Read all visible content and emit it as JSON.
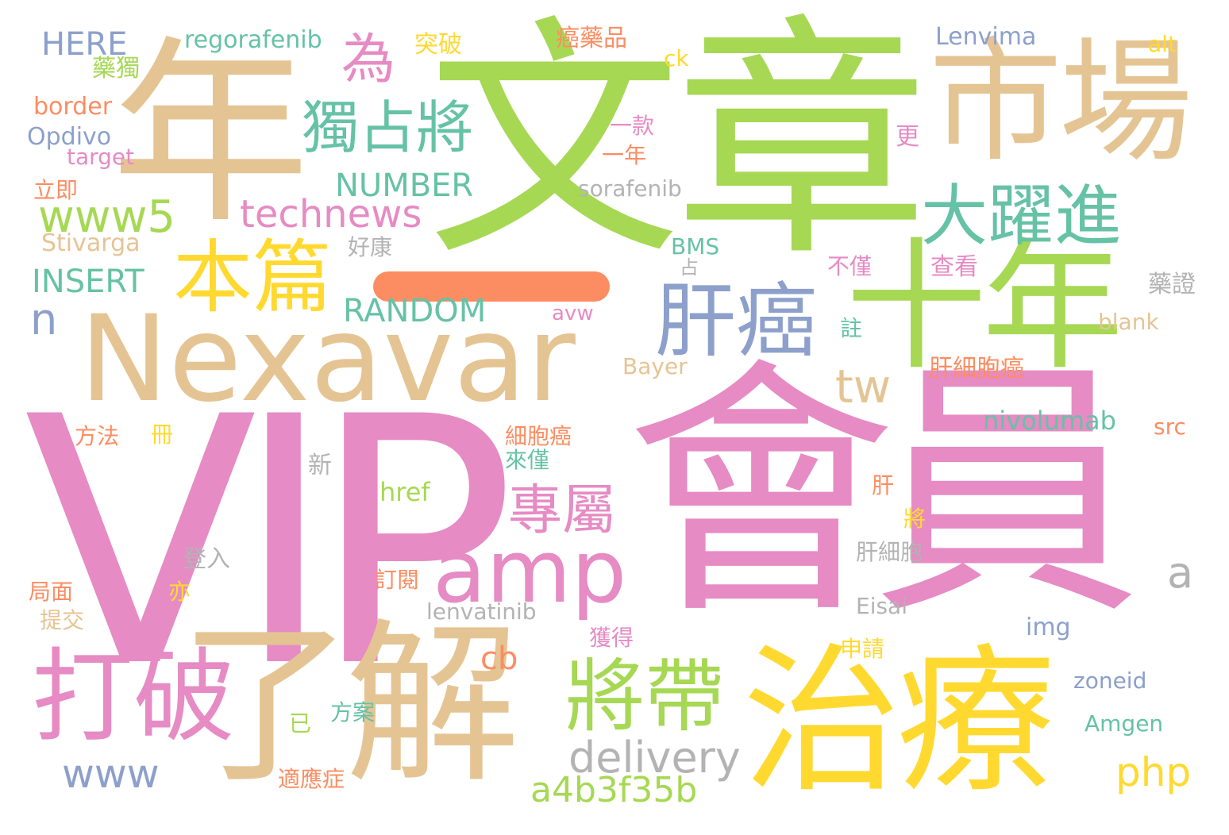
{
  "colors": {
    "pink": "#E68BC4",
    "green": "#A6D854",
    "tan": "#E5C494",
    "yellow": "#FFD92F",
    "blue": "#8DA0CB",
    "teal": "#66C2A5",
    "orange": "#FC8D62",
    "gray": "#B3B3B3"
  },
  "words": [
    {
      "text": "VIP",
      "color": "pink"
    },
    {
      "text": "文章",
      "color": "green"
    },
    {
      "text": "會員",
      "color": "pink"
    },
    {
      "text": "年",
      "color": "tan"
    },
    {
      "text": "Nexavar",
      "color": "tan"
    },
    {
      "text": "了解",
      "color": "tan"
    },
    {
      "text": "治療",
      "color": "yellow"
    },
    {
      "text": "市場",
      "color": "tan"
    },
    {
      "text": "十年",
      "color": "green"
    },
    {
      "text": "打破",
      "color": "pink"
    },
    {
      "text": "將帶",
      "color": "green"
    },
    {
      "text": "肝癌",
      "color": "blue"
    },
    {
      "text": "本篇",
      "color": "yellow"
    },
    {
      "text": "大躍進",
      "color": "teal"
    },
    {
      "text": "獨占將",
      "color": "teal"
    },
    {
      "text": "amp",
      "color": "pink"
    },
    {
      "text": "專屬",
      "color": "pink"
    },
    {
      "text": "www5",
      "color": "green"
    },
    {
      "text": "technews",
      "color": "pink"
    },
    {
      "text": "為",
      "color": "pink"
    },
    {
      "text": "tw",
      "color": "tan"
    },
    {
      "text": "delivery",
      "color": "gray"
    },
    {
      "text": "www",
      "color": "blue"
    },
    {
      "text": "a4b3f35b",
      "color": "green"
    },
    {
      "text": "php",
      "color": "yellow"
    },
    {
      "text": "INSERT",
      "color": "teal"
    },
    {
      "text": "NUMBER",
      "color": "teal"
    },
    {
      "text": "RANDOM",
      "color": "teal"
    },
    {
      "text": "HERE",
      "color": "blue"
    },
    {
      "text": "n",
      "color": "blue"
    },
    {
      "text": "a",
      "color": "gray"
    },
    {
      "text": "cb",
      "color": "orange"
    },
    {
      "text": "nivolumab",
      "color": "teal"
    },
    {
      "text": "regorafenib",
      "color": "teal"
    },
    {
      "text": "Lenvima",
      "color": "blue"
    },
    {
      "text": "sorafenib",
      "color": "gray"
    },
    {
      "text": "Stivarga",
      "color": "tan"
    },
    {
      "text": "lenvatinib",
      "color": "gray"
    },
    {
      "text": "Opdivo",
      "color": "blue"
    },
    {
      "text": "border",
      "color": "orange"
    },
    {
      "text": "target",
      "color": "pink"
    },
    {
      "text": "Bayer",
      "color": "tan"
    },
    {
      "text": "BMS",
      "color": "teal"
    },
    {
      "text": "href",
      "color": "green"
    },
    {
      "text": "Eisai",
      "color": "gray"
    },
    {
      "text": "img",
      "color": "blue"
    },
    {
      "text": "zoneid",
      "color": "blue"
    },
    {
      "text": "Amgen",
      "color": "teal"
    },
    {
      "text": "src",
      "color": "orange"
    },
    {
      "text": "blank",
      "color": "tan"
    },
    {
      "text": "alt",
      "color": "yellow"
    },
    {
      "text": "ck",
      "color": "yellow"
    },
    {
      "text": "avw",
      "color": "pink"
    },
    {
      "text": "突破",
      "color": "yellow"
    },
    {
      "text": "癌藥品",
      "color": "orange"
    },
    {
      "text": "藥獨",
      "color": "green"
    },
    {
      "text": "一款",
      "color": "pink"
    },
    {
      "text": "一年",
      "color": "orange"
    },
    {
      "text": "更",
      "color": "pink"
    },
    {
      "text": "立即",
      "color": "orange"
    },
    {
      "text": "好康",
      "color": "gray"
    },
    {
      "text": "不僅",
      "color": "pink"
    },
    {
      "text": "查看",
      "color": "pink"
    },
    {
      "text": "藥證",
      "color": "gray"
    },
    {
      "text": "占",
      "color": "gray"
    },
    {
      "text": "註",
      "color": "teal"
    },
    {
      "text": "肝細胞癌",
      "color": "orange"
    },
    {
      "text": "方法",
      "color": "orange"
    },
    {
      "text": "冊",
      "color": "yellow"
    },
    {
      "text": "細胞癌",
      "color": "orange"
    },
    {
      "text": "來僅",
      "color": "teal"
    },
    {
      "text": "新",
      "color": "gray"
    },
    {
      "text": "肝",
      "color": "orange"
    },
    {
      "text": "將",
      "color": "yellow"
    },
    {
      "text": "登入",
      "color": "gray"
    },
    {
      "text": "肝細胞",
      "color": "gray"
    },
    {
      "text": "局面",
      "color": "orange"
    },
    {
      "text": "亦",
      "color": "yellow"
    },
    {
      "text": "訂閱",
      "color": "orange"
    },
    {
      "text": "提交",
      "color": "tan"
    },
    {
      "text": "獲得",
      "color": "pink"
    },
    {
      "text": "申請",
      "color": "yellow"
    },
    {
      "text": "已",
      "color": "green"
    },
    {
      "text": "方案",
      "color": "teal"
    },
    {
      "text": "適應症",
      "color": "orange"
    },
    {
      "text": "一",
      "color": "orange"
    }
  ]
}
